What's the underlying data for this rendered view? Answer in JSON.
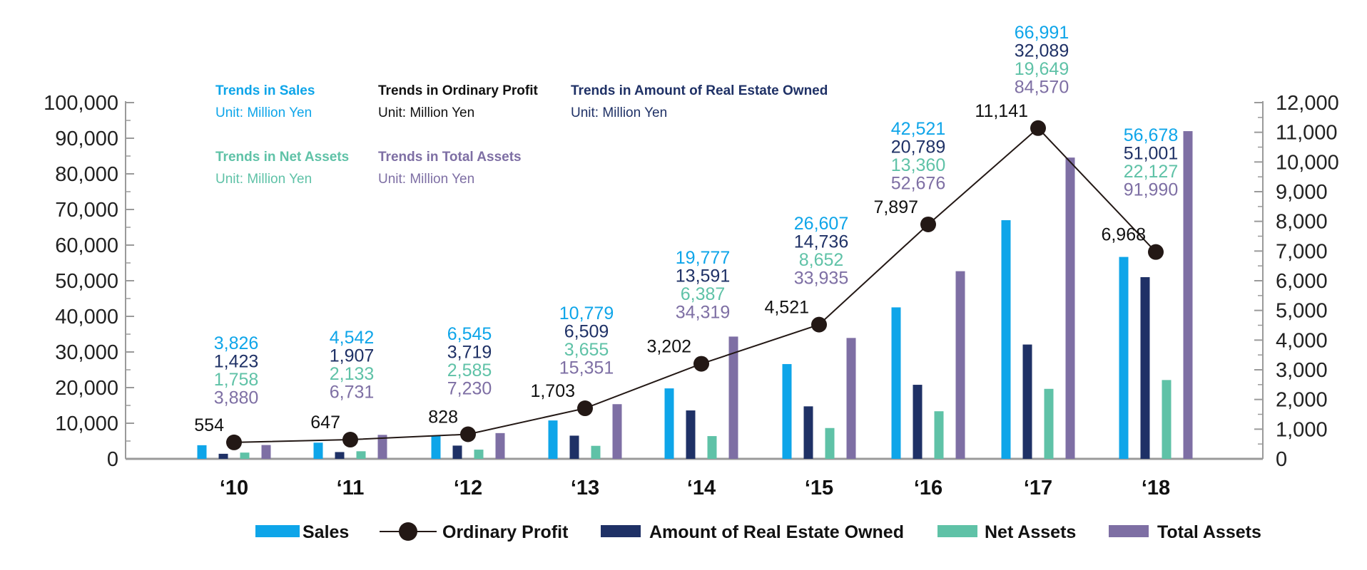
{
  "colors": {
    "sales": "#0ea5e9",
    "ordinary_profit": "#231815",
    "real_estate": "#1f3166",
    "net_assets": "#5fc2a7",
    "total_assets": "#7e6fa4",
    "axis": "#9a9a9a"
  },
  "notes": [
    {
      "title": "Trends in Sales",
      "unit": "Unit: Million Yen",
      "color_key": "sales"
    },
    {
      "title": "Trends in Ordinary Profit",
      "unit": "Unit: Million Yen",
      "color_key": "ordinary_profit"
    },
    {
      "title": "Trends in Amount of Real Estate Owned",
      "unit": "Unit: Million Yen",
      "color_key": "real_estate"
    },
    {
      "title": "Trends in Net Assets",
      "unit": "Unit: Million Yen",
      "color_key": "net_assets"
    },
    {
      "title": "Trends in Total Assets",
      "unit": "Unit: Million Yen",
      "color_key": "total_assets"
    }
  ],
  "legend": [
    {
      "label": "Sales",
      "kind": "bar",
      "color_key": "sales"
    },
    {
      "label": "Ordinary Profit",
      "kind": "line",
      "color_key": "ordinary_profit"
    },
    {
      "label": "Amount of Real Estate Owned",
      "kind": "bar",
      "color_key": "real_estate"
    },
    {
      "label": "Net Assets",
      "kind": "bar",
      "color_key": "net_assets"
    },
    {
      "label": "Total Assets",
      "kind": "bar",
      "color_key": "total_assets"
    }
  ],
  "chart_data": {
    "type": "bar",
    "title": "",
    "categories": [
      "‘10",
      "‘11",
      "‘12",
      "‘13",
      "‘14",
      "‘15",
      "‘16",
      "‘17",
      "‘18"
    ],
    "left_axis": {
      "ylim": [
        0,
        100000
      ],
      "ticks": [
        "0",
        "10,000",
        "20,000",
        "30,000",
        "40,000",
        "50,000",
        "60,000",
        "70,000",
        "80,000",
        "90,000",
        "100,000"
      ]
    },
    "right_axis": {
      "ylim": [
        0,
        12000
      ],
      "ticks": [
        "0",
        "1,000",
        "2,000",
        "3,000",
        "4,000",
        "5,000",
        "6,000",
        "7,000",
        "8,000",
        "9,000",
        "10,000",
        "11,000",
        "12,000"
      ]
    },
    "series": [
      {
        "name": "Sales",
        "type": "bar",
        "axis": "left",
        "color_key": "sales",
        "values": [
          3826,
          4542,
          6545,
          10779,
          19777,
          26607,
          42521,
          66991,
          56678
        ],
        "labels": [
          "3,826",
          "4,542",
          "6,545",
          "10,779",
          "19,777",
          "26,607",
          "42,521",
          "66,991",
          "56,678"
        ]
      },
      {
        "name": "Amount of Real Estate Owned",
        "type": "bar",
        "axis": "left",
        "color_key": "real_estate",
        "values": [
          1423,
          1907,
          3719,
          6509,
          13591,
          14736,
          20789,
          32089,
          51001
        ],
        "labels": [
          "1,423",
          "1,907",
          "3,719",
          "6,509",
          "13,591",
          "14,736",
          "20,789",
          "32,089",
          "51,001"
        ]
      },
      {
        "name": "Net Assets",
        "type": "bar",
        "axis": "left",
        "color_key": "net_assets",
        "values": [
          1758,
          2133,
          2585,
          3655,
          6387,
          8652,
          13360,
          19649,
          22127
        ],
        "labels": [
          "1,758",
          "2,133",
          "2,585",
          "3,655",
          "6,387",
          "8,652",
          "13,360",
          "19,649",
          "22,127"
        ]
      },
      {
        "name": "Total Assets",
        "type": "bar",
        "axis": "left",
        "color_key": "total_assets",
        "values": [
          3880,
          6731,
          7230,
          15351,
          34319,
          33935,
          52676,
          84570,
          91990
        ],
        "labels": [
          "3,880",
          "6,731",
          "7,230",
          "15,351",
          "34,319",
          "33,935",
          "52,676",
          "84,570",
          "91,990"
        ]
      },
      {
        "name": "Ordinary Profit",
        "type": "line",
        "axis": "right",
        "color_key": "ordinary_profit",
        "values": [
          554,
          647,
          828,
          1703,
          3202,
          4521,
          7897,
          11141,
          6968
        ],
        "labels": [
          "554",
          "647",
          "828",
          "1,703",
          "3,202",
          "4,521",
          "7,897",
          "11,141",
          "6,968"
        ]
      }
    ]
  }
}
